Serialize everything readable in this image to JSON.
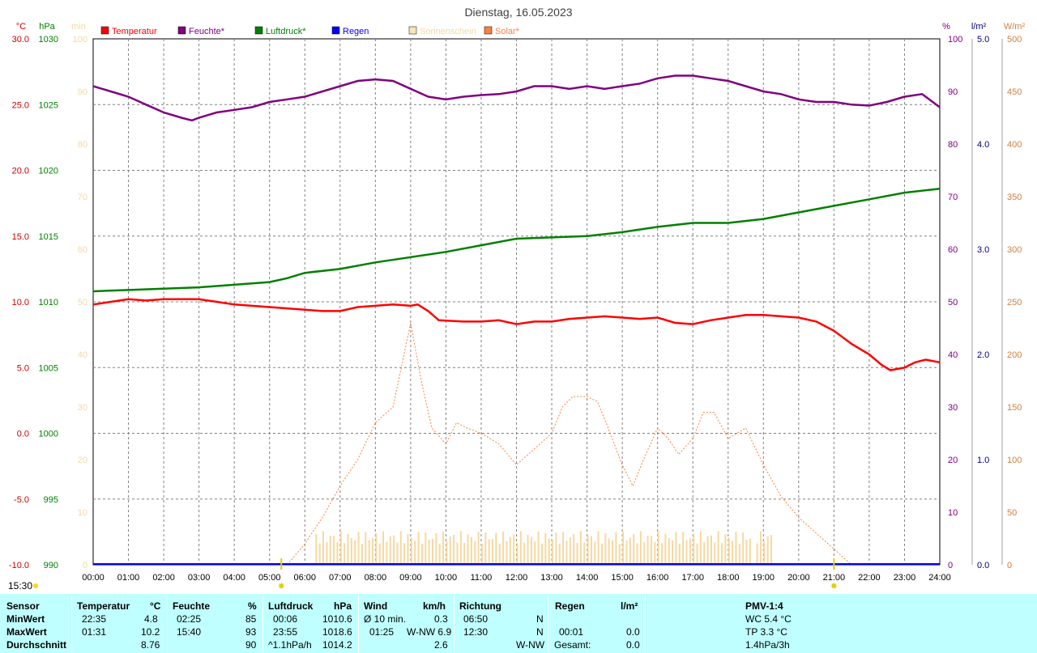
{
  "chart_data": {
    "type": "line",
    "title": "Dienstag, 16.05.2023",
    "axes": {
      "temp": {
        "unit": "°C",
        "min": -10,
        "max": 30,
        "step": 5,
        "color": "#cc0000",
        "ticks": [
          "30.0",
          "25.0",
          "20.0",
          "15.0",
          "10.0",
          "5.0",
          "0.0",
          "-5.0",
          "-10.0"
        ]
      },
      "pressure": {
        "unit": "hPa",
        "min": 990,
        "max": 1030,
        "step": 5,
        "color": "#008000",
        "ticks": [
          "1030",
          "1025",
          "1020",
          "1015",
          "1010",
          "1005",
          "1000",
          "995",
          "990"
        ]
      },
      "sun": {
        "unit": "min",
        "min": 0,
        "max": 100,
        "step": 10,
        "color": "#f7d8a0",
        "ticks": [
          "100",
          "90",
          "80",
          "70",
          "60",
          "50",
          "40",
          "30",
          "20",
          "10",
          "0"
        ]
      },
      "humidity": {
        "unit": "%",
        "min": 0,
        "max": 100,
        "step": 10,
        "color": "#800080",
        "ticks": [
          "100",
          "90",
          "80",
          "70",
          "60",
          "50",
          "40",
          "30",
          "20",
          "10",
          "0"
        ]
      },
      "rain": {
        "unit": "l/m²",
        "min": 0,
        "max": 5,
        "step": 1,
        "color": "#000080",
        "ticks": [
          "5.0",
          "4.0",
          "3.0",
          "2.0",
          "1.0",
          "0.0"
        ]
      },
      "solar": {
        "unit": "W/m²",
        "min": 0,
        "max": 500,
        "step": 50,
        "color": "#d08040",
        "ticks": [
          "500",
          "450",
          "400",
          "350",
          "300",
          "250",
          "200",
          "150",
          "100",
          "50",
          "0"
        ]
      }
    },
    "x_ticks": [
      "00:00",
      "01:00",
      "02:00",
      "03:00",
      "04:00",
      "05:00",
      "06:00",
      "07:00",
      "08:00",
      "09:00",
      "10:00",
      "11:00",
      "12:00",
      "13:00",
      "14:00",
      "15:00",
      "16:00",
      "17:00",
      "18:00",
      "19:00",
      "20:00",
      "21:00",
      "22:00",
      "23:00",
      "24:00"
    ],
    "legend": [
      {
        "name": "Temperatur",
        "color": "#ff0000"
      },
      {
        "name": "Feuchte*",
        "color": "#800080"
      },
      {
        "name": "Luftdruck*",
        "color": "#008000"
      },
      {
        "name": "Regen",
        "color": "#0000ff"
      },
      {
        "name": "Sonnenschein",
        "color": "#ffe4b0"
      },
      {
        "name": "Solar*",
        "color": "#ff8040"
      }
    ],
    "markers": {
      "sunrise": "05:20",
      "sunset": "21:00",
      "now_label": "15:30"
    },
    "series": {
      "temperature": [
        [
          0,
          9.8
        ],
        [
          0.5,
          10.0
        ],
        [
          1,
          10.2
        ],
        [
          1.5,
          10.1
        ],
        [
          2,
          10.2
        ],
        [
          2.5,
          10.2
        ],
        [
          3,
          10.2
        ],
        [
          3.5,
          10.0
        ],
        [
          4,
          9.8
        ],
        [
          4.5,
          9.7
        ],
        [
          5,
          9.6
        ],
        [
          5.5,
          9.5
        ],
        [
          6,
          9.4
        ],
        [
          6.5,
          9.3
        ],
        [
          7,
          9.3
        ],
        [
          7.5,
          9.6
        ],
        [
          8,
          9.7
        ],
        [
          8.5,
          9.8
        ],
        [
          9,
          9.7
        ],
        [
          9.2,
          9.8
        ],
        [
          9.5,
          9.3
        ],
        [
          9.8,
          8.6
        ],
        [
          10.5,
          8.5
        ],
        [
          11,
          8.5
        ],
        [
          11.5,
          8.6
        ],
        [
          12,
          8.3
        ],
        [
          12.5,
          8.5
        ],
        [
          13,
          8.5
        ],
        [
          13.5,
          8.7
        ],
        [
          14,
          8.8
        ],
        [
          14.5,
          8.9
        ],
        [
          15,
          8.8
        ],
        [
          15.5,
          8.7
        ],
        [
          16,
          8.8
        ],
        [
          16.5,
          8.4
        ],
        [
          17,
          8.3
        ],
        [
          17.5,
          8.6
        ],
        [
          18,
          8.8
        ],
        [
          18.5,
          9.0
        ],
        [
          19,
          9.0
        ],
        [
          19.5,
          8.9
        ],
        [
          20,
          8.8
        ],
        [
          20.5,
          8.5
        ],
        [
          21,
          7.8
        ],
        [
          21.5,
          6.8
        ],
        [
          22,
          6.0
        ],
        [
          22.35,
          5.2
        ],
        [
          22.6,
          4.8
        ],
        [
          23,
          5.0
        ],
        [
          23.3,
          5.4
        ],
        [
          23.6,
          5.6
        ],
        [
          24,
          5.4
        ]
      ],
      "humidity": [
        [
          0,
          91
        ],
        [
          0.5,
          90
        ],
        [
          1,
          89
        ],
        [
          1.5,
          87.5
        ],
        [
          2,
          86
        ],
        [
          2.5,
          85
        ],
        [
          2.8,
          84.5
        ],
        [
          3,
          85
        ],
        [
          3.5,
          86
        ],
        [
          4,
          86.5
        ],
        [
          4.5,
          87
        ],
        [
          5,
          88
        ],
        [
          5.5,
          88.5
        ],
        [
          6,
          89
        ],
        [
          6.5,
          90
        ],
        [
          7,
          91
        ],
        [
          7.5,
          92
        ],
        [
          8,
          92.3
        ],
        [
          8.5,
          92
        ],
        [
          9,
          90.5
        ],
        [
          9.5,
          89
        ],
        [
          10,
          88.5
        ],
        [
          10.5,
          89
        ],
        [
          11,
          89.3
        ],
        [
          11.5,
          89.5
        ],
        [
          12,
          90
        ],
        [
          12.5,
          91
        ],
        [
          13,
          91
        ],
        [
          13.5,
          90.5
        ],
        [
          14,
          91
        ],
        [
          14.5,
          90.5
        ],
        [
          15,
          91
        ],
        [
          15.5,
          91.5
        ],
        [
          16,
          92.5
        ],
        [
          16.5,
          93
        ],
        [
          17,
          93
        ],
        [
          17.5,
          92.5
        ],
        [
          18,
          92
        ],
        [
          18.5,
          91
        ],
        [
          19,
          90
        ],
        [
          19.5,
          89.5
        ],
        [
          20,
          88.5
        ],
        [
          20.5,
          88
        ],
        [
          21,
          88
        ],
        [
          21.5,
          87.5
        ],
        [
          22,
          87.3
        ],
        [
          22.5,
          88
        ],
        [
          23,
          89
        ],
        [
          23.5,
          89.5
        ],
        [
          24,
          87
        ]
      ],
      "pressure": [
        [
          0,
          1010.8
        ],
        [
          1,
          1010.9
        ],
        [
          2,
          1011.0
        ],
        [
          3,
          1011.1
        ],
        [
          4,
          1011.3
        ],
        [
          5,
          1011.5
        ],
        [
          5.5,
          1011.8
        ],
        [
          6,
          1012.2
        ],
        [
          7,
          1012.5
        ],
        [
          8,
          1013.0
        ],
        [
          9,
          1013.4
        ],
        [
          10,
          1013.8
        ],
        [
          11,
          1014.3
        ],
        [
          12,
          1014.8
        ],
        [
          13,
          1014.9
        ],
        [
          14,
          1015.0
        ],
        [
          15,
          1015.3
        ],
        [
          16,
          1015.7
        ],
        [
          17,
          1016.0
        ],
        [
          18,
          1016.0
        ],
        [
          19,
          1016.3
        ],
        [
          20,
          1016.8
        ],
        [
          21,
          1017.3
        ],
        [
          22,
          1017.8
        ],
        [
          23,
          1018.3
        ],
        [
          24,
          1018.6
        ]
      ],
      "solar": [
        [
          5.5,
          0
        ],
        [
          6,
          20
        ],
        [
          6.5,
          45
        ],
        [
          7,
          75
        ],
        [
          7.5,
          100
        ],
        [
          8,
          135
        ],
        [
          8.5,
          150
        ],
        [
          9,
          230
        ],
        [
          9.3,
          175
        ],
        [
          9.6,
          130
        ],
        [
          10,
          115
        ],
        [
          10.3,
          135
        ],
        [
          10.6,
          130
        ],
        [
          11,
          125
        ],
        [
          11.5,
          115
        ],
        [
          12,
          95
        ],
        [
          12.5,
          110
        ],
        [
          13,
          125
        ],
        [
          13.3,
          150
        ],
        [
          13.6,
          160
        ],
        [
          14,
          160
        ],
        [
          14.3,
          155
        ],
        [
          14.6,
          130
        ],
        [
          15,
          95
        ],
        [
          15.3,
          75
        ],
        [
          15.6,
          100
        ],
        [
          16,
          130
        ],
        [
          16.3,
          120
        ],
        [
          16.6,
          105
        ],
        [
          17,
          120
        ],
        [
          17.3,
          145
        ],
        [
          17.6,
          145
        ],
        [
          18,
          120
        ],
        [
          18.5,
          130
        ],
        [
          19,
          95
        ],
        [
          19.5,
          65
        ],
        [
          20,
          45
        ],
        [
          20.5,
          30
        ],
        [
          21,
          15
        ],
        [
          21.5,
          0
        ]
      ],
      "sunshine_range": [
        6.3,
        19.3
      ]
    }
  },
  "stats": {
    "headers": {
      "sensor": "Sensor",
      "temp": "Temperatur",
      "temp_unit": "°C",
      "hum": "Feuchte",
      "hum_unit": "%",
      "pres": "Luftdruck",
      "pres_unit": "hPa",
      "wind": "Wind",
      "wind_unit": "km/h",
      "dir": "Richtung",
      "rain": "Regen",
      "rain_unit": "l/m²",
      "pmv": "PMV-1:4"
    },
    "rows": {
      "min": "MinWert",
      "max": "MaxWert",
      "avg": "Durchschnitt"
    },
    "temp": {
      "min_time": "22:35",
      "min": "4.8",
      "max_time": "01:31",
      "max": "10.2",
      "avg": "8.76"
    },
    "hum": {
      "min_time": "02:25",
      "min": "85",
      "max_time": "15:40",
      "max": "93",
      "avg": "90"
    },
    "pres": {
      "min_time": "00:06",
      "min": "1010.6",
      "max_time": "23:55",
      "max": "1018.6",
      "trend": "^1.1hPa/h",
      "avg": "1014.2"
    },
    "wind": {
      "r1_label": "Ø 10 min.",
      "r1_val": "0.3",
      "r2_time": "01:25",
      "r2_val": "W-NW 6.9",
      "r3_val": "2.6"
    },
    "dir": {
      "r1_time": "06:50",
      "r1_val": "N",
      "r2_time": "12:30",
      "r2_val": "N",
      "r3_val": "W-NW"
    },
    "rain": {
      "r2_time": "00:01",
      "r2_val": "0.0",
      "r3_label": "Gesamt:",
      "r3_val": "0.0"
    },
    "pmv": {
      "wc": "WC 5.4 °C",
      "tp": "TP 3.3 °C",
      "trend": "1.4hPa/3h"
    }
  }
}
